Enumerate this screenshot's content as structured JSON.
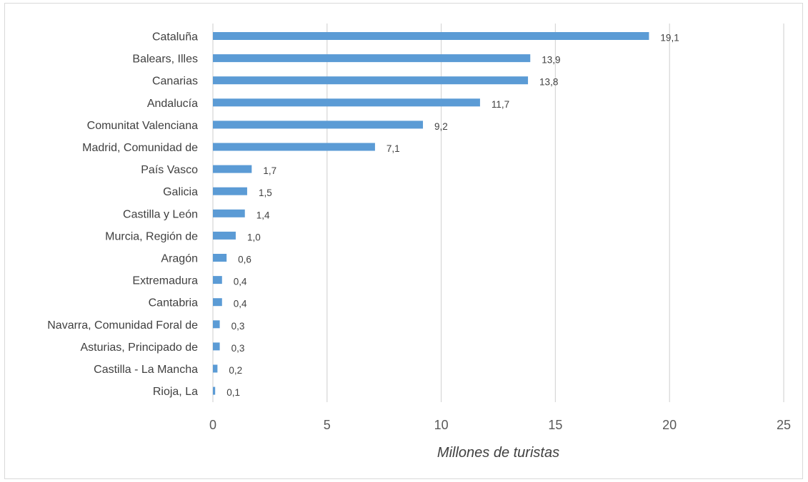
{
  "chart_data": {
    "type": "bar",
    "orientation": "horizontal",
    "title": "",
    "xlabel": "Millones de turistas",
    "ylabel": "",
    "xlim": [
      0,
      25
    ],
    "xticks": [
      0,
      5,
      10,
      15,
      20,
      25
    ],
    "grid": true,
    "legend": "none",
    "bar_color": "#5b9bd5",
    "categories": [
      "Cataluña",
      "Balears, Illes",
      "Canarias",
      "Andalucía",
      "Comunitat Valenciana",
      "Madrid, Comunidad de",
      "País Vasco",
      "Galicia",
      "Castilla y León",
      "Murcia, Región de",
      "Aragón",
      "Extremadura",
      "Cantabria",
      "Navarra, Comunidad Foral de",
      "Asturias, Principado de",
      "Castilla - La Mancha",
      "Rioja, La"
    ],
    "values": [
      19.1,
      13.9,
      13.8,
      11.7,
      9.2,
      7.1,
      1.7,
      1.5,
      1.4,
      1.0,
      0.6,
      0.4,
      0.4,
      0.3,
      0.3,
      0.2,
      0.1
    ],
    "data_labels": [
      "19,1",
      "13,9",
      "13,8",
      "11,7",
      "9,2",
      "7,1",
      "1,7",
      "1,5",
      "1,4",
      "1,0",
      "0,6",
      "0,4",
      "0,4",
      "0,3",
      "0,3",
      "0,2",
      "0,1"
    ]
  }
}
